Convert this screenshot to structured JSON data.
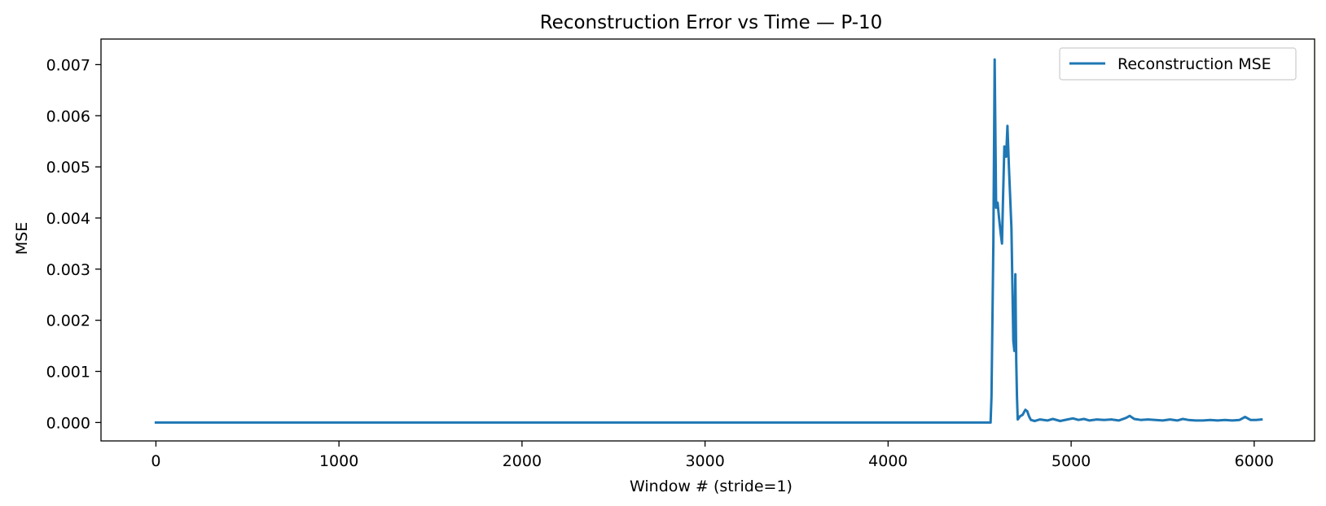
{
  "chart_data": {
    "type": "line",
    "title": "Reconstruction Error vs Time — P-10",
    "xlabel": "Window # (stride=1)",
    "ylabel": "MSE",
    "xlim": [
      -300,
      6330
    ],
    "ylim": [
      -0.00036,
      0.0075
    ],
    "xticks": [
      0,
      1000,
      2000,
      3000,
      4000,
      5000,
      6000
    ],
    "xtick_labels": [
      "0",
      "1000",
      "2000",
      "3000",
      "4000",
      "5000",
      "6000"
    ],
    "yticks": [
      0.0,
      0.001,
      0.002,
      0.003,
      0.004,
      0.005,
      0.006,
      0.007
    ],
    "ytick_labels": [
      "0.000",
      "0.001",
      "0.002",
      "0.003",
      "0.004",
      "0.005",
      "0.006",
      "0.007"
    ],
    "grid": false,
    "legend_position": "top-right",
    "series": [
      {
        "name": "Reconstruction MSE",
        "color": "#1f77b4",
        "x": [
          0,
          4560,
          4565,
          4575,
          4582,
          4590,
          4598,
          4606,
          4615,
          4622,
          4628,
          4635,
          4645,
          4652,
          4660,
          4666,
          4674,
          4684,
          4690,
          4695,
          4700,
          4704,
          4708,
          4713,
          4720,
          4735,
          4750,
          4760,
          4770,
          4780,
          4800,
          4830,
          4870,
          4900,
          4940,
          4980,
          5010,
          5040,
          5070,
          5100,
          5140,
          5180,
          5220,
          5260,
          5300,
          5320,
          5345,
          5380,
          5420,
          5460,
          5500,
          5540,
          5580,
          5610,
          5640,
          5680,
          5720,
          5760,
          5800,
          5840,
          5880,
          5920,
          5950,
          5980,
          6010,
          6040
        ],
        "y": [
          0.0,
          0.0,
          0.0005,
          0.0035,
          0.0071,
          0.0042,
          0.0043,
          0.004,
          0.0037,
          0.0035,
          0.0044,
          0.0054,
          0.0052,
          0.0058,
          0.005,
          0.0045,
          0.0038,
          0.0016,
          0.0014,
          0.0029,
          0.0012,
          0.0005,
          6e-05,
          8e-05,
          0.00012,
          0.00015,
          0.00025,
          0.00022,
          0.00012,
          5e-05,
          3e-05,
          6e-05,
          4e-05,
          7e-05,
          3e-05,
          6e-05,
          8e-05,
          5e-05,
          7e-05,
          4e-05,
          6e-05,
          5e-05,
          6e-05,
          4e-05,
          9e-05,
          0.00013,
          7e-05,
          5e-05,
          6e-05,
          5e-05,
          4e-05,
          6e-05,
          4e-05,
          7e-05,
          5e-05,
          4e-05,
          4e-05,
          5e-05,
          4e-05,
          5e-05,
          4e-05,
          5e-05,
          0.00011,
          5e-05,
          5e-05,
          6e-05
        ]
      }
    ]
  }
}
